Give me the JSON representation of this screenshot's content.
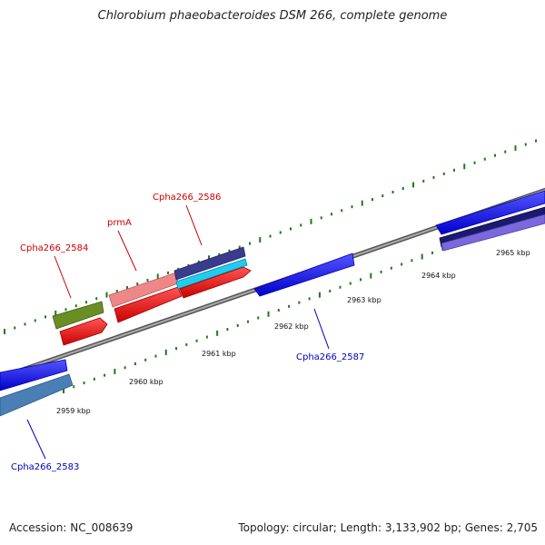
{
  "title": "Chlorobium phaeobacteroides DSM 266, complete genome",
  "accession": "Accession: NC_008639",
  "summary": "Topology: circular; Length: 3,133,902 bp; Genes: 2,705",
  "ticks": [
    {
      "label": "2959 kbp",
      "kbp": 2959
    },
    {
      "label": "2960 kbp",
      "kbp": 2960
    },
    {
      "label": "2961 kbp",
      "kbp": 2961
    },
    {
      "label": "2962 kbp",
      "kbp": 2962
    },
    {
      "label": "2963 kbp",
      "kbp": 2963
    },
    {
      "label": "2964 kbp",
      "kbp": 2964
    },
    {
      "label": "2965 kbp",
      "kbp": 2965
    }
  ],
  "gene_labels": [
    {
      "text": "Cpha266_2584",
      "strand": "top",
      "color": "#cc0000"
    },
    {
      "text": "prmA",
      "strand": "top",
      "color": "#cc0000"
    },
    {
      "text": "Cpha266_2586",
      "strand": "top",
      "color": "#cc0000"
    },
    {
      "text": "Cpha266_2587",
      "strand": "bottom",
      "color": "#0000bb"
    },
    {
      "text": "Cpha266_2583",
      "strand": "bottom",
      "color": "#0000bb"
    }
  ],
  "colors": {
    "backbone": "#888888",
    "tick": "#1a7a1a",
    "gene_forward": "#ee1111",
    "gene_reverse": "#1111ee",
    "label_forward": "#cc0000",
    "label_reverse": "#0000bb"
  }
}
